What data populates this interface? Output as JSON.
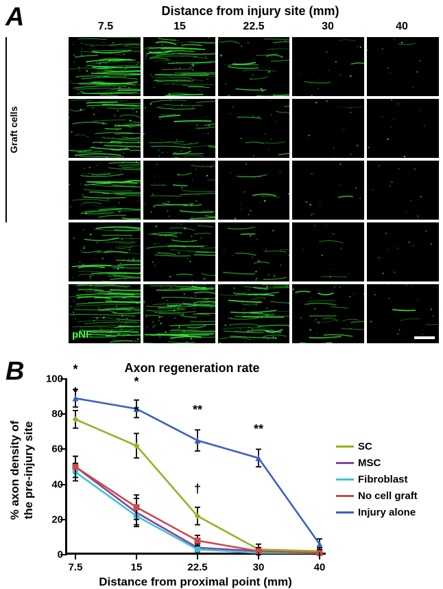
{
  "panel_A": {
    "letter": "A",
    "title": "Distance from injury site (mm)",
    "distances": [
      "7.5",
      "15",
      "22.5",
      "30",
      "40"
    ],
    "graft_label": "Graft cells",
    "rows": [
      {
        "label": "SC",
        "density": [
          0.95,
          0.7,
          0.28,
          0.05,
          0.01
        ]
      },
      {
        "label": "MSC",
        "density": [
          0.65,
          0.35,
          0.1,
          0.02,
          0.0
        ]
      },
      {
        "label": "Fibroblast",
        "density": [
          0.6,
          0.3,
          0.08,
          0.02,
          0.0
        ]
      },
      {
        "label": "No cell graft",
        "density": [
          0.6,
          0.35,
          0.15,
          0.03,
          0.0
        ]
      },
      {
        "label": "Injury alone",
        "density": [
          0.98,
          0.85,
          0.55,
          0.25,
          0.05
        ]
      }
    ],
    "pnf_label": "pNF"
  },
  "panel_B": {
    "letter": "B",
    "title": "Axon regeneration rate",
    "ylabel": "% axon density of\nthe pre-injury site",
    "xlabel": "Distance from proximal point (mm)",
    "ylim": [
      0,
      100
    ],
    "yticks": [
      0,
      20,
      40,
      60,
      80,
      100
    ],
    "xticks": [
      7.5,
      15,
      22.5,
      30,
      40
    ],
    "xlim": [
      7.5,
      40
    ],
    "colors": {
      "SC": "#8db522",
      "MSC": "#8a3fa3",
      "Fibroblast": "#3fc2d9",
      "No cell graft": "#c94a4a",
      "Injury alone": "#3a5fc2"
    },
    "markers": {
      "SC": "diamond",
      "MSC": "triangle",
      "Fibroblast": "circle",
      "No cell graft": "square",
      "Injury alone": "triangle"
    },
    "series": {
      "SC": {
        "y": [
          77,
          62,
          22,
          3,
          2
        ],
        "err": [
          5,
          7,
          5,
          3,
          2
        ]
      },
      "MSC": {
        "y": [
          50,
          24,
          4,
          2,
          1
        ],
        "err": [
          6,
          8,
          2,
          2,
          1
        ]
      },
      "Fibroblast": {
        "y": [
          47,
          22,
          3,
          1,
          1
        ],
        "err": [
          5,
          5,
          2,
          1,
          1
        ]
      },
      "No cell graft": {
        "y": [
          50,
          27,
          8,
          2,
          1
        ],
        "err": [
          6,
          7,
          3,
          2,
          1
        ]
      },
      "Injury alone": {
        "y": [
          89,
          83,
          65,
          55,
          6
        ],
        "err": [
          5,
          5,
          6,
          5,
          3
        ]
      }
    },
    "legend_order": [
      "SC",
      "MSC",
      "Fibroblast",
      "No cell graft",
      "Injury alone"
    ],
    "sig": [
      {
        "label": "*",
        "x": 7.5,
        "series": "Injury alone",
        "dy": -20
      },
      {
        "label": "*",
        "x": 7.5,
        "series": "SC",
        "dy": -18
      },
      {
        "label": "*",
        "x": 15,
        "series": "Injury alone",
        "dy": -18
      },
      {
        "label": "*",
        "x": 15,
        "series": "SC",
        "dy": -24
      },
      {
        "label": "**",
        "x": 22.5,
        "series": "Injury alone",
        "dy": -20
      },
      {
        "label": "†",
        "x": 22.5,
        "series": "SC",
        "dy": -18
      },
      {
        "label": "**",
        "x": 30,
        "series": "Injury alone",
        "dy": -20
      }
    ]
  }
}
